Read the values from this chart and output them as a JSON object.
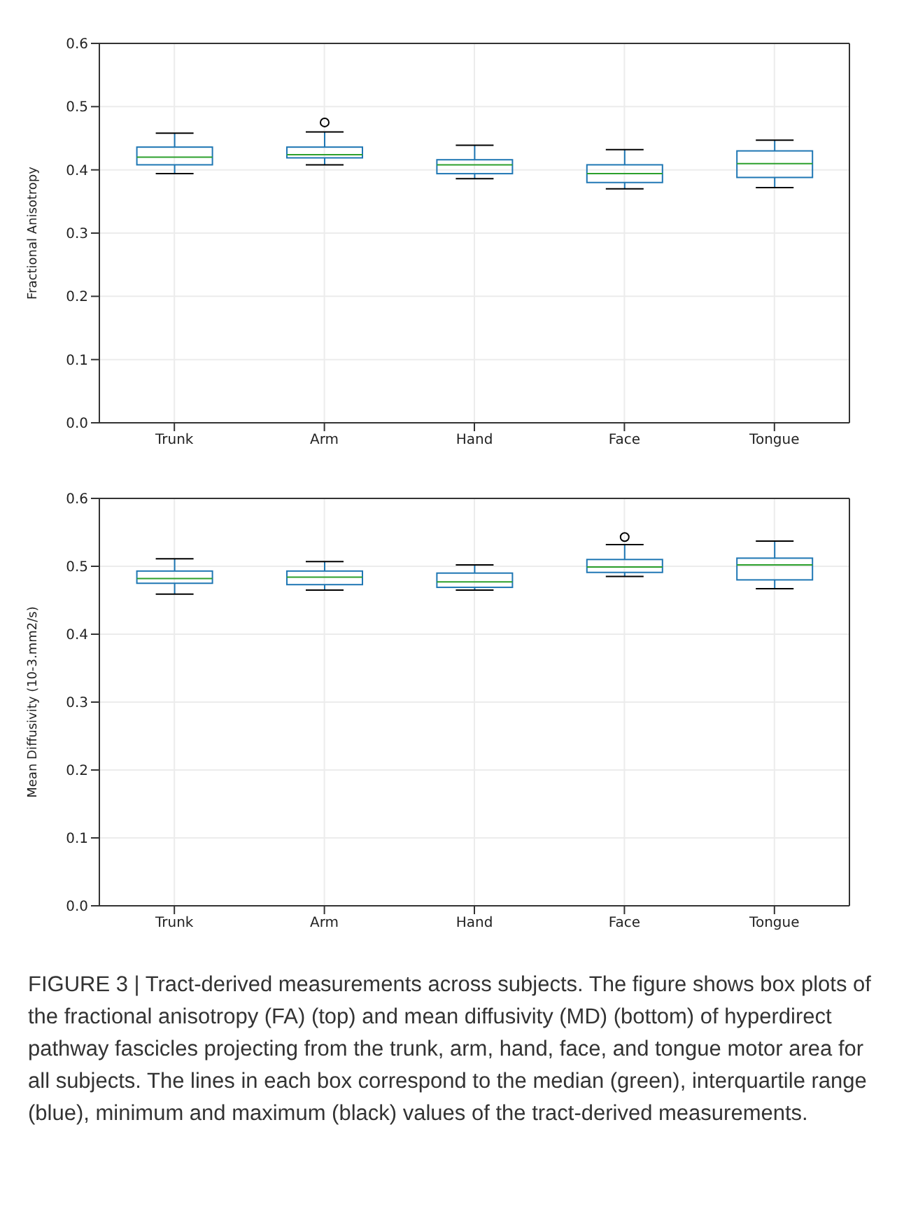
{
  "chart_data": [
    {
      "type": "box",
      "ylabel": "Fractional Anisotropy",
      "categories": [
        "Trunk",
        "Arm",
        "Hand",
        "Face",
        "Tongue"
      ],
      "ylim": [
        0,
        0.6
      ],
      "yticks": [
        {
          "value": 0,
          "label": "0.0"
        },
        0.1,
        0.2,
        0.3,
        0.4,
        0.5,
        0.6
      ],
      "grid": true,
      "series": [
        {
          "color": "#1f77b4",
          "boxes": [
            {
              "low": 0.394,
              "q1": 0.408,
              "median": 0.42,
              "q3": 0.436,
              "high": 0.458
            },
            {
              "low": 0.408,
              "q1": 0.419,
              "median": 0.424,
              "q3": 0.436,
              "high": 0.46,
              "outliers": [
                0.475
              ]
            },
            {
              "low": 0.386,
              "q1": 0.394,
              "median": 0.408,
              "q3": 0.416,
              "high": 0.439
            },
            {
              "low": 0.37,
              "q1": 0.38,
              "median": 0.394,
              "q3": 0.408,
              "high": 0.432
            },
            {
              "low": 0.372,
              "q1": 0.388,
              "median": 0.41,
              "q3": 0.43,
              "high": 0.447
            }
          ]
        }
      ]
    },
    {
      "type": "box",
      "ylabel": "Mean Diffusivity (10-3.mm2/s)",
      "categories": [
        "Trunk",
        "Arm",
        "Hand",
        "Face",
        "Tongue"
      ],
      "ylim": [
        0,
        0.6
      ],
      "yticks": [
        {
          "value": 0,
          "label": "0.0"
        },
        0.1,
        0.2,
        0.3,
        0.4,
        0.5,
        0.6
      ],
      "grid": true,
      "series": [
        {
          "color": "#1f77b4",
          "boxes": [
            {
              "low": 0.459,
              "q1": 0.475,
              "median": 0.482,
              "q3": 0.493,
              "high": 0.511
            },
            {
              "low": 0.465,
              "q1": 0.473,
              "median": 0.484,
              "q3": 0.493,
              "high": 0.507
            },
            {
              "low": 0.465,
              "q1": 0.469,
              "median": 0.477,
              "q3": 0.49,
              "high": 0.502
            },
            {
              "low": 0.485,
              "q1": 0.491,
              "median": 0.499,
              "q3": 0.51,
              "high": 0.532,
              "outliers": [
                0.543
              ]
            },
            {
              "low": 0.467,
              "q1": 0.48,
              "median": 0.502,
              "q3": 0.512,
              "high": 0.537
            }
          ]
        }
      ],
      "annotations": [
        "FIGURE 3 | Tract-derived measurements across subjects. The figure shows box plots of the fractional anisotropy (FA) (top) and mean diffusivity (MD) (bottom) of hyperdirect pathway fascicles projecting from the trunk, arm, hand, face, and tongue motor area for all subjects. The lines in each box correspond to the median (green), interquartile range (blue), minimum and maximum (black) values of the tract-derived measurements."
      ]
    }
  ]
}
